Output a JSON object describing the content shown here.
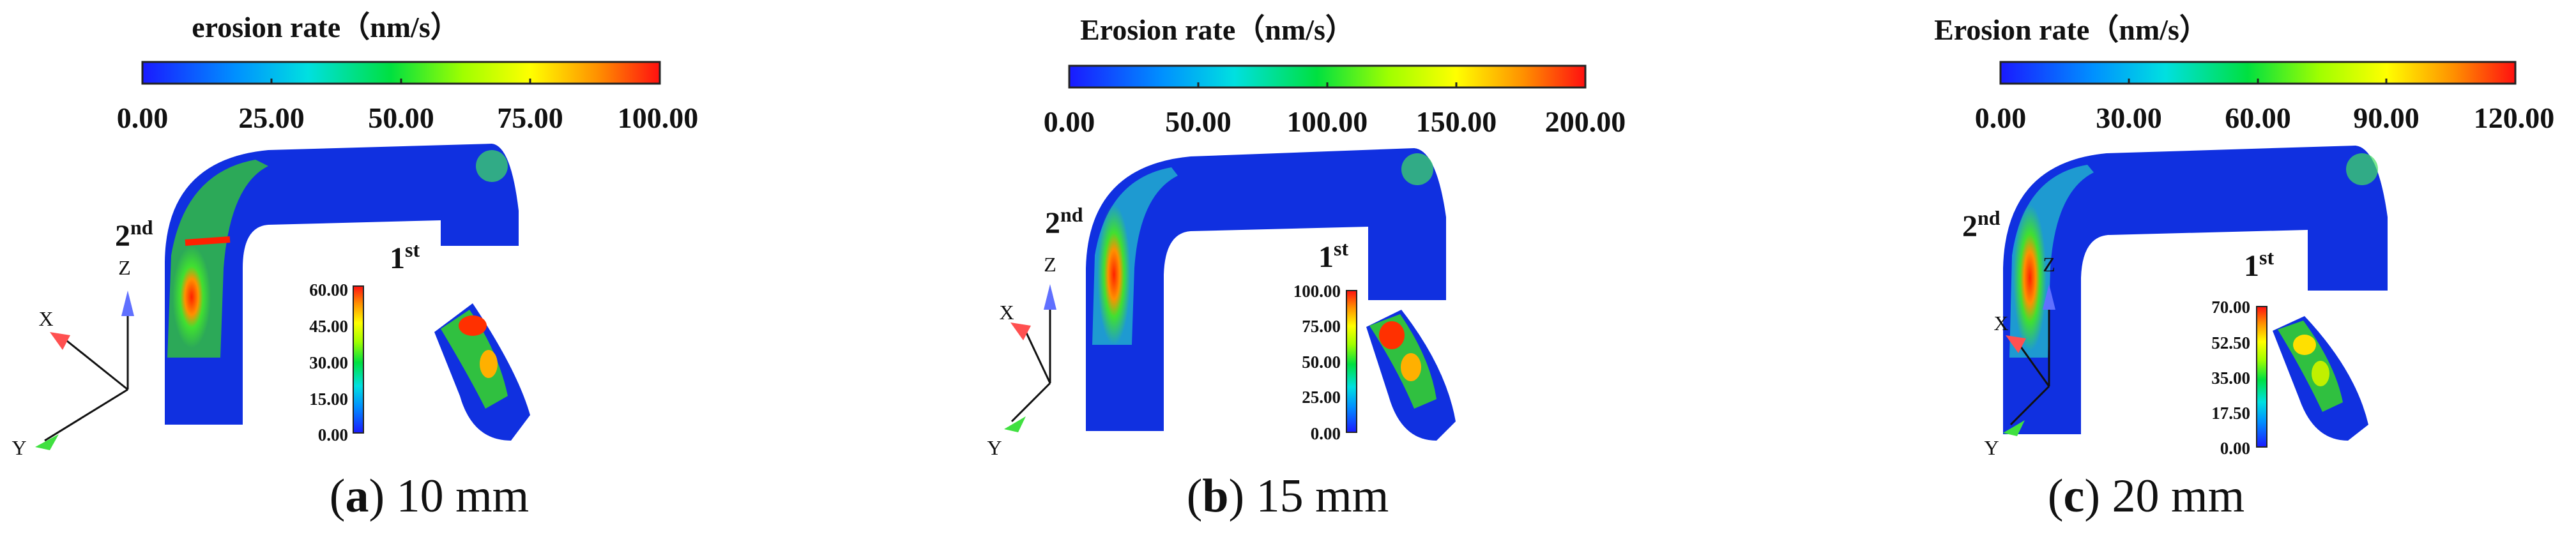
{
  "panels": [
    {
      "colorbar_title": "erosion rate（nm/s）",
      "main_ticks": [
        "0.00",
        "25.00",
        "50.00",
        "75.00",
        "100.00"
      ],
      "inset_ticks": [
        "60.00",
        "45.00",
        "30.00",
        "15.00",
        "0.00"
      ],
      "label_second": "2",
      "label_second_sup": "nd",
      "label_first": "1",
      "label_first_sup": "st",
      "caption_letter": "a",
      "caption_text": "10 mm"
    },
    {
      "colorbar_title": "Erosion rate（nm/s）",
      "main_ticks": [
        "0.00",
        "50.00",
        "100.00",
        "150.00",
        "200.00"
      ],
      "inset_ticks": [
        "100.00",
        "75.00",
        "50.00",
        "25.00",
        "0.00"
      ],
      "label_second": "2",
      "label_second_sup": "nd",
      "label_first": "1",
      "label_first_sup": "st",
      "caption_letter": "b",
      "caption_text": "15 mm"
    },
    {
      "colorbar_title": "Erosion rate（nm/s）",
      "main_ticks": [
        "0.00",
        "30.00",
        "60.00",
        "90.00",
        "120.00"
      ],
      "inset_ticks": [
        "70.00",
        "52.50",
        "35.00",
        "17.50",
        "0.00"
      ],
      "label_second": "2",
      "label_second_sup": "nd",
      "label_first": "1",
      "label_first_sup": "st",
      "caption_letter": "c",
      "caption_text": "20 mm"
    }
  ],
  "axes": {
    "x": "X",
    "y": "Y",
    "z": "Z"
  },
  "caption_parens": {
    "open": "(",
    "close": ")"
  },
  "colormap": [
    "#1a1aff",
    "#0090ff",
    "#00e0e0",
    "#00e040",
    "#a0ff00",
    "#ffff00",
    "#ff9000",
    "#ff1010"
  ]
}
